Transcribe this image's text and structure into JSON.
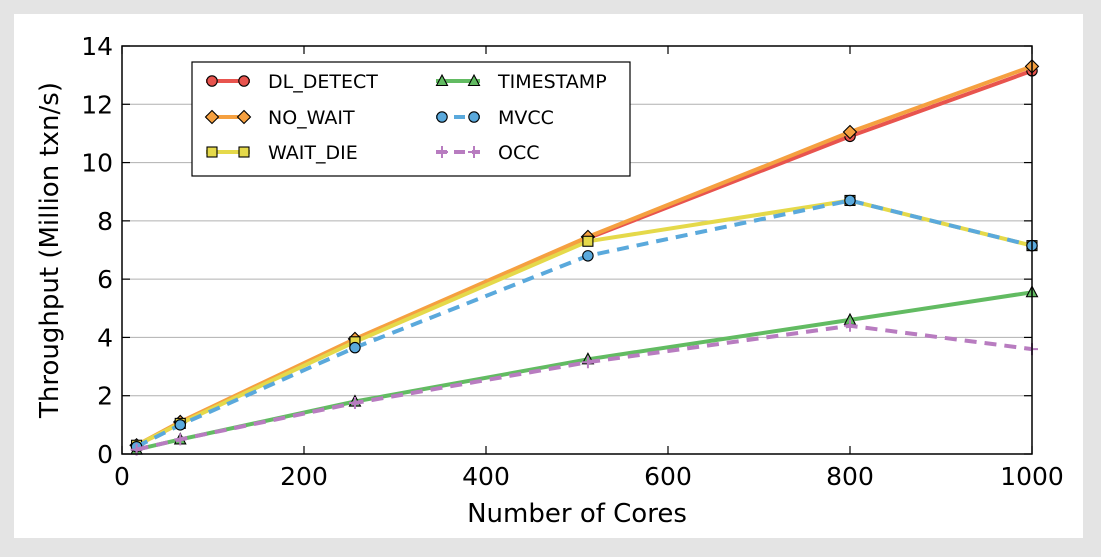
{
  "chart_data": {
    "type": "line",
    "title": "",
    "xlabel": "Number of Cores",
    "ylabel": "Throughput (Million txn/s)",
    "xlim": [
      0,
      1000
    ],
    "ylim": [
      0,
      14
    ],
    "xticks": [
      "0",
      "200",
      "400",
      "600",
      "800",
      "1000"
    ],
    "yticks": [
      "0",
      "2",
      "4",
      "6",
      "8",
      "10",
      "12",
      "14"
    ],
    "grid": "horizontal",
    "legend_position": "top-left, two columns",
    "x": [
      16,
      64,
      256,
      512,
      800,
      1000
    ],
    "series": [
      {
        "name": "DL_DETECT",
        "values": [
          0.3,
          1.05,
          3.9,
          7.4,
          10.9,
          13.15
        ],
        "color": "#e8544e",
        "marker": "circle",
        "dashed": false
      },
      {
        "name": "NO_WAIT",
        "values": [
          0.3,
          1.1,
          3.95,
          7.45,
          11.05,
          13.3
        ],
        "color": "#f5a040",
        "marker": "diamond",
        "dashed": false
      },
      {
        "name": "WAIT_DIE",
        "values": [
          0.3,
          1.05,
          3.85,
          7.3,
          8.7,
          7.15
        ],
        "color": "#e5d94a",
        "marker": "square",
        "dashed": false
      },
      {
        "name": "TIMESTAMP",
        "values": [
          0.15,
          0.5,
          1.8,
          3.25,
          4.6,
          5.55
        ],
        "color": "#62bb62",
        "marker": "triangle",
        "dashed": false
      },
      {
        "name": "MVCC",
        "values": [
          0.25,
          1.0,
          3.65,
          6.8,
          8.7,
          7.15
        ],
        "color": "#5aa9dc",
        "marker": "circle",
        "dashed": true
      },
      {
        "name": "OCC",
        "values": [
          0.15,
          0.5,
          1.75,
          3.15,
          4.4,
          3.6
        ],
        "color": "#b87cc0",
        "marker": "plus",
        "dashed": true
      }
    ]
  }
}
